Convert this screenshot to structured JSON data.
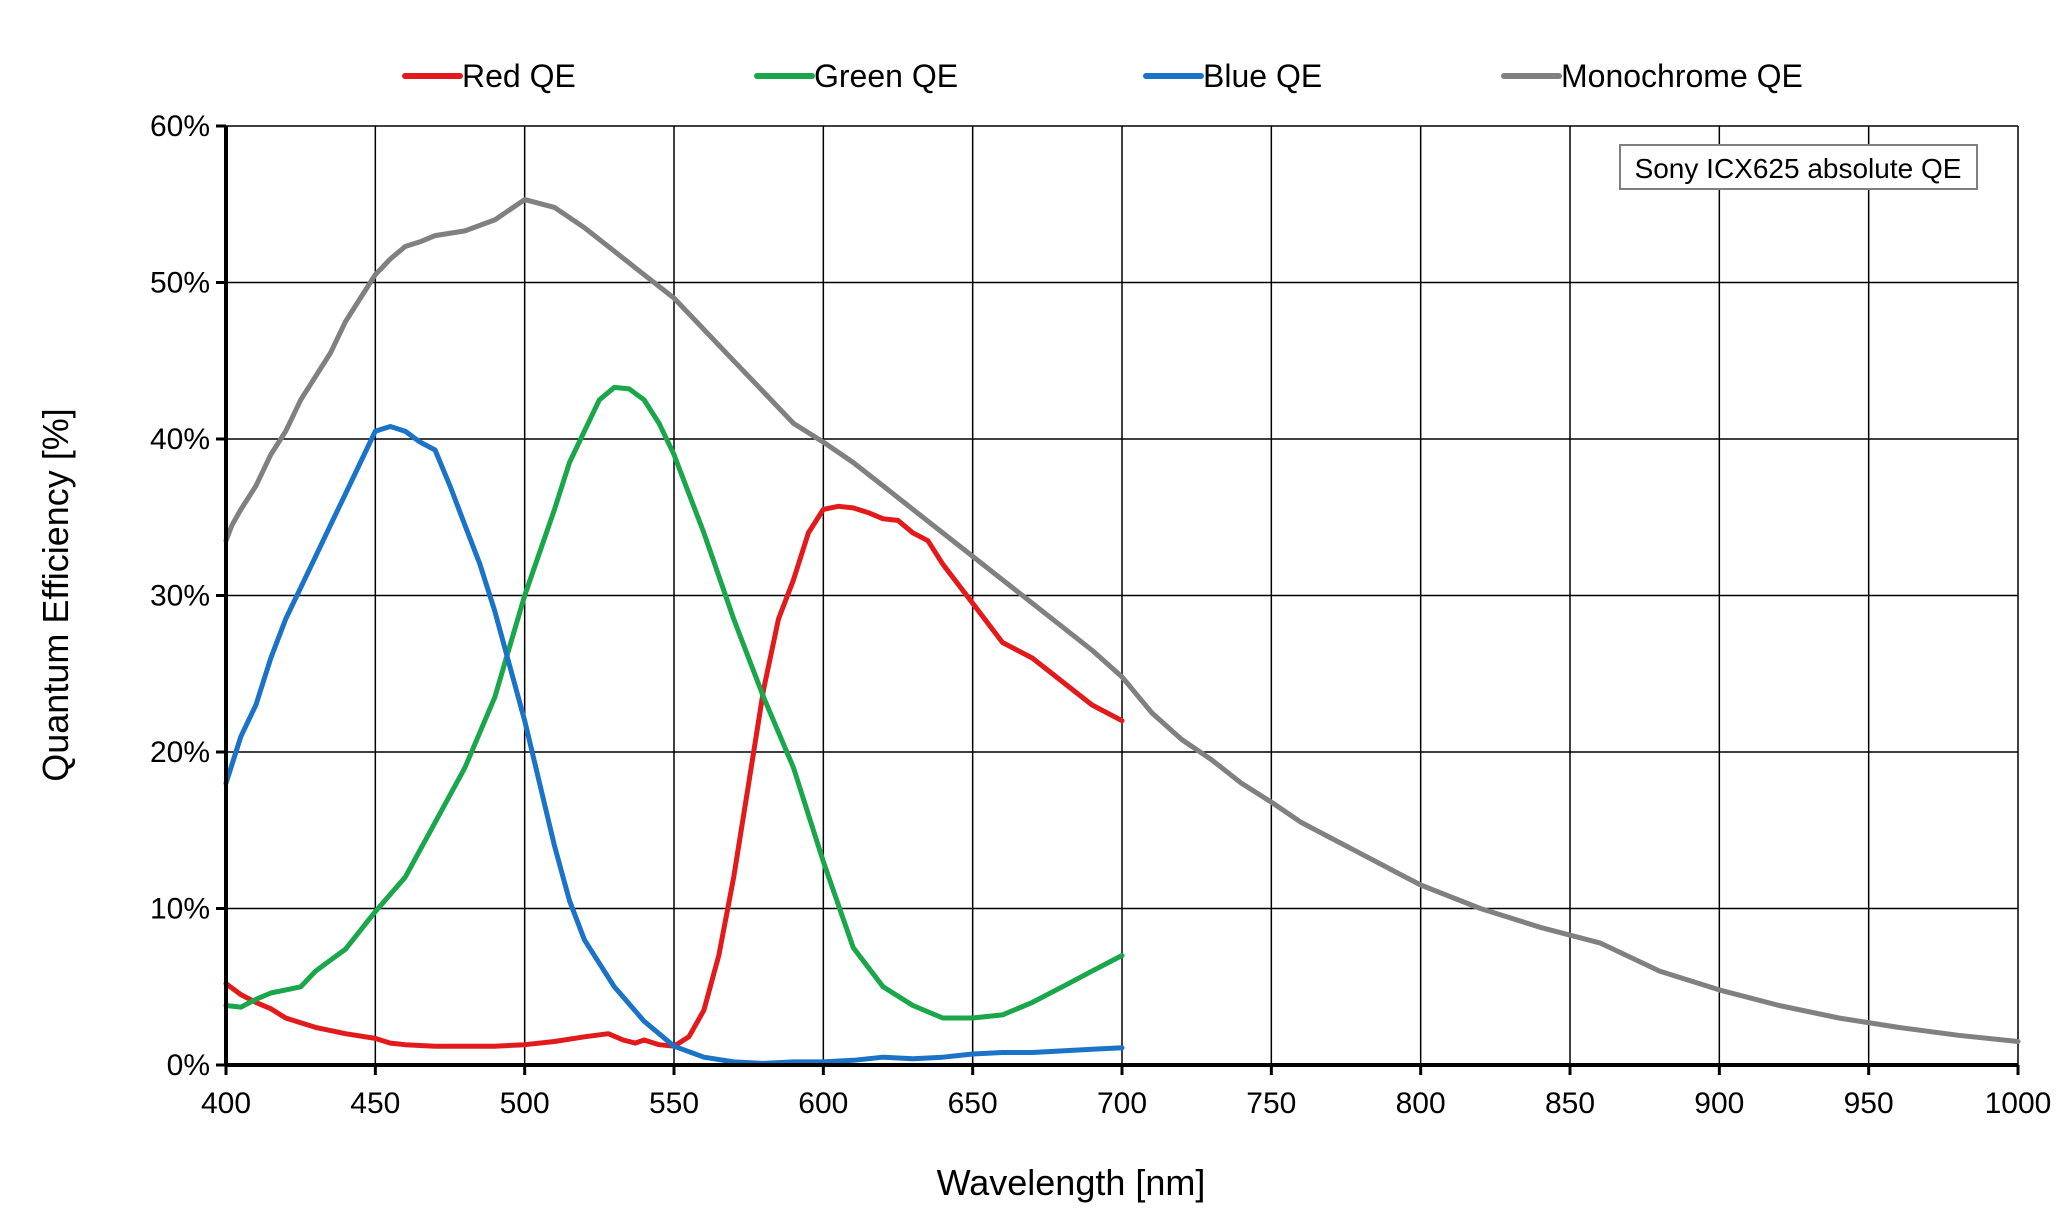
{
  "chart_data": {
    "type": "line",
    "title": "",
    "xlabel": "Wavelength [nm]",
    "ylabel": "Quantum Efficiency [%]",
    "xlim": [
      400,
      1000
    ],
    "ylim": [
      0,
      60
    ],
    "xticks": [
      400,
      450,
      500,
      550,
      600,
      650,
      700,
      750,
      800,
      850,
      900,
      950,
      1000
    ],
    "yticks": [
      0,
      10,
      20,
      30,
      40,
      50,
      60
    ],
    "ytick_suffix": "%",
    "grid": true,
    "legend_position": "top",
    "annotation": "Sony ICX625 absolute QE",
    "series": [
      {
        "name": "Red QE",
        "color": "#e31a1c",
        "x": [
          400,
          405,
          410,
          415,
          420,
          425,
          430,
          440,
          450,
          455,
          460,
          470,
          480,
          490,
          500,
          510,
          520,
          528,
          533,
          537,
          540,
          545,
          550,
          555,
          560,
          565,
          570,
          575,
          580,
          585,
          590,
          595,
          600,
          605,
          610,
          615,
          620,
          625,
          630,
          635,
          640,
          650,
          660,
          670,
          680,
          690,
          700
        ],
        "y": [
          5.2,
          4.5,
          4.0,
          3.6,
          3.0,
          2.7,
          2.4,
          2.0,
          1.7,
          1.4,
          1.3,
          1.2,
          1.2,
          1.2,
          1.3,
          1.5,
          1.8,
          2.0,
          1.6,
          1.4,
          1.6,
          1.3,
          1.2,
          1.8,
          3.5,
          7.0,
          12.0,
          18.0,
          24.0,
          28.5,
          31.0,
          34.0,
          35.5,
          35.7,
          35.6,
          35.3,
          34.9,
          34.8,
          34.0,
          33.5,
          32.0,
          29.5,
          27.0,
          26.0,
          24.5,
          23.0,
          22.0
        ]
      },
      {
        "name": "Green QE",
        "color": "#1aa64b",
        "x": [
          400,
          405,
          410,
          415,
          420,
          425,
          430,
          435,
          440,
          450,
          460,
          470,
          480,
          490,
          500,
          510,
          515,
          520,
          525,
          530,
          535,
          540,
          545,
          550,
          560,
          570,
          580,
          590,
          600,
          610,
          620,
          630,
          640,
          650,
          660,
          670,
          680,
          690,
          700
        ],
        "y": [
          3.8,
          3.7,
          4.2,
          4.6,
          4.8,
          5.0,
          6.0,
          6.7,
          7.4,
          9.8,
          12.0,
          15.5,
          19.0,
          23.5,
          30.0,
          35.5,
          38.5,
          40.5,
          42.5,
          43.3,
          43.2,
          42.5,
          41.0,
          39.0,
          34.0,
          28.5,
          23.5,
          19.0,
          13.0,
          7.5,
          5.0,
          3.8,
          3.0,
          3.0,
          3.2,
          4.0,
          5.0,
          6.0,
          7.0
        ]
      },
      {
        "name": "Blue QE",
        "color": "#1a73c6",
        "x": [
          400,
          405,
          410,
          415,
          420,
          425,
          430,
          435,
          440,
          445,
          450,
          455,
          460,
          465,
          470,
          475,
          480,
          485,
          490,
          495,
          500,
          505,
          510,
          515,
          520,
          530,
          540,
          550,
          560,
          570,
          580,
          590,
          600,
          610,
          620,
          630,
          640,
          650,
          660,
          670,
          680,
          690,
          700
        ],
        "y": [
          18.0,
          21.0,
          23.0,
          26.0,
          28.5,
          30.5,
          32.5,
          34.5,
          36.5,
          38.5,
          40.5,
          40.8,
          40.5,
          39.8,
          39.3,
          37.0,
          34.5,
          32.0,
          29.0,
          25.5,
          22.0,
          18.0,
          14.0,
          10.5,
          8.0,
          5.0,
          2.8,
          1.2,
          0.5,
          0.2,
          0.1,
          0.2,
          0.2,
          0.3,
          0.5,
          0.4,
          0.5,
          0.7,
          0.8,
          0.8,
          0.9,
          1.0,
          1.1
        ]
      },
      {
        "name": "Monochrome QE",
        "color": "#808080",
        "x": [
          400,
          402,
          405,
          410,
          415,
          420,
          425,
          430,
          435,
          440,
          445,
          450,
          455,
          460,
          465,
          470,
          480,
          490,
          500,
          510,
          520,
          530,
          540,
          550,
          560,
          570,
          580,
          590,
          600,
          610,
          620,
          630,
          640,
          650,
          660,
          670,
          680,
          690,
          700,
          710,
          720,
          730,
          740,
          750,
          760,
          770,
          780,
          790,
          800,
          820,
          840,
          860,
          880,
          900,
          920,
          940,
          960,
          980,
          1000
        ],
        "y": [
          33.5,
          34.5,
          35.5,
          37.0,
          39.0,
          40.5,
          42.5,
          44.0,
          45.5,
          47.5,
          49.0,
          50.5,
          51.5,
          52.3,
          52.6,
          53.0,
          53.3,
          54.0,
          55.3,
          54.8,
          53.5,
          52.0,
          50.5,
          49.0,
          47.0,
          45.0,
          43.0,
          41.0,
          39.8,
          38.5,
          37.0,
          35.5,
          34.0,
          32.5,
          31.0,
          29.5,
          28.0,
          26.5,
          24.8,
          22.5,
          20.8,
          19.5,
          18.0,
          16.8,
          15.5,
          14.5,
          13.5,
          12.5,
          11.5,
          10.0,
          8.8,
          7.8,
          6.0,
          4.8,
          3.8,
          3.0,
          2.4,
          1.9,
          1.5
        ]
      }
    ]
  }
}
